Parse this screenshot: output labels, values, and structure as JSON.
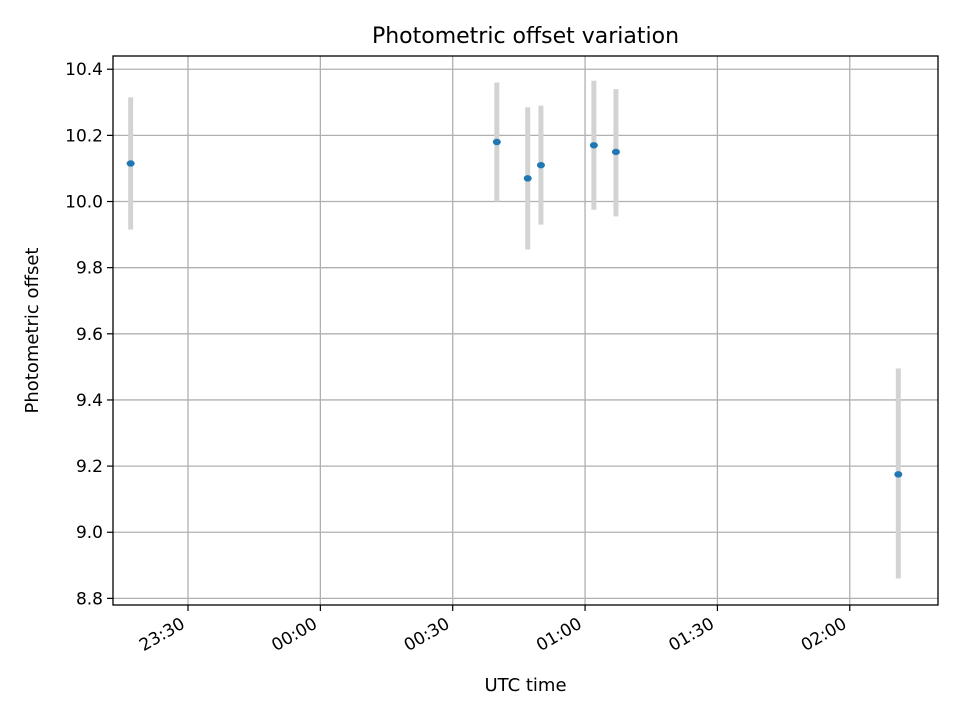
{
  "chart_data": {
    "type": "scatter",
    "title": "Photometric offset variation",
    "xlabel": "UTC time",
    "ylabel": "Photometric offset",
    "x_axis": {
      "kind": "time",
      "range": [
        "23:13",
        "02:20"
      ],
      "ticks": [
        "23:30",
        "00:00",
        "00:30",
        "01:00",
        "01:30",
        "02:00"
      ]
    },
    "y_axis": {
      "range": [
        8.78,
        10.44
      ],
      "ticks": [
        "8.8",
        "9.0",
        "9.2",
        "9.4",
        "9.6",
        "9.8",
        "10.0",
        "10.2",
        "10.4"
      ]
    },
    "grid": true,
    "series": [
      {
        "marker_color": "#1f77b4",
        "errorbar_color": "#d3d3d3",
        "points": [
          {
            "x": "23:17",
            "y": 10.115,
            "ymin": 9.915,
            "ymax": 10.315
          },
          {
            "x": "00:40",
            "y": 10.18,
            "ymin": 10.0,
            "ymax": 10.36
          },
          {
            "x": "00:47",
            "y": 10.07,
            "ymin": 9.855,
            "ymax": 10.285
          },
          {
            "x": "00:50",
            "y": 10.11,
            "ymin": 9.93,
            "ymax": 10.29
          },
          {
            "x": "01:02",
            "y": 10.17,
            "ymin": 9.975,
            "ymax": 10.365
          },
          {
            "x": "01:07",
            "y": 10.15,
            "ymin": 9.955,
            "ymax": 10.34
          },
          {
            "x": "02:11",
            "y": 9.175,
            "ymin": 8.86,
            "ymax": 9.495
          }
        ]
      }
    ]
  }
}
